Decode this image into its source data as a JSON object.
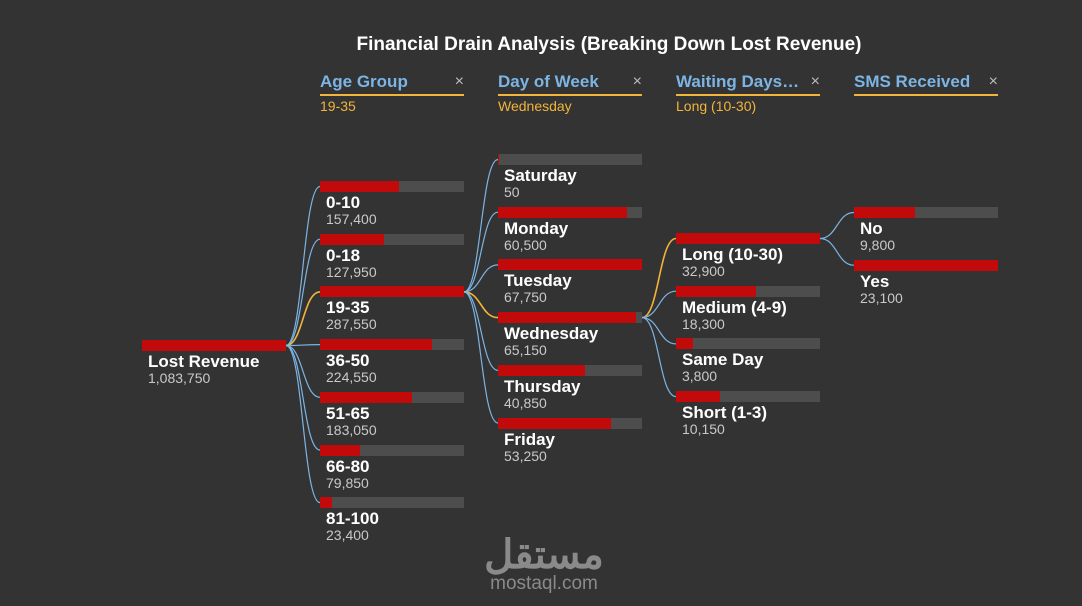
{
  "title": "Financial Drain Analysis (Breaking Down Lost Revenue)",
  "columns": [
    {
      "label": "Age Group",
      "selected": "19-35",
      "close_icon": "×"
    },
    {
      "label": "Day of Week",
      "selected": "Wednesday",
      "close_icon": "×"
    },
    {
      "label": "Waiting Days…",
      "selected": "Long (10-30)",
      "close_icon": "×"
    },
    {
      "label": "SMS Received",
      "selected": "",
      "close_icon": "×"
    }
  ],
  "colors": {
    "background": "#333333",
    "bar_fill": "#c20a0a",
    "bar_track": "#4d4d4d",
    "connector": "#7cb4e4",
    "selected_connector": "#f2b43a",
    "header_text": "#7cb4e4",
    "selection_accent": "#f2b43a"
  },
  "chart_data": {
    "type": "decomposition-tree",
    "title": "Financial Drain Analysis (Breaking Down Lost Revenue)",
    "root": {
      "label": "Lost Revenue",
      "value_text": "1,083,750",
      "value": 1083750
    },
    "levels": [
      {
        "name": "Age Group",
        "parent": "Lost Revenue",
        "selected_index": 2,
        "nodes": [
          {
            "label": "0-10",
            "value_text": "157,400",
            "value": 157400
          },
          {
            "label": "0-18",
            "value_text": "127,950",
            "value": 127950
          },
          {
            "label": "19-35",
            "value_text": "287,550",
            "value": 287550
          },
          {
            "label": "36-50",
            "value_text": "224,550",
            "value": 224550
          },
          {
            "label": "51-65",
            "value_text": "183,050",
            "value": 183050
          },
          {
            "label": "66-80",
            "value_text": "79,850",
            "value": 79850
          },
          {
            "label": "81-100",
            "value_text": "23,400",
            "value": 23400
          }
        ]
      },
      {
        "name": "Day of Week",
        "parent": "19-35",
        "selected_index": 3,
        "nodes": [
          {
            "label": "Saturday",
            "value_text": "50",
            "value": 50
          },
          {
            "label": "Monday",
            "value_text": "60,500",
            "value": 60500
          },
          {
            "label": "Tuesday",
            "value_text": "67,750",
            "value": 67750
          },
          {
            "label": "Wednesday",
            "value_text": "65,150",
            "value": 65150
          },
          {
            "label": "Thursday",
            "value_text": "40,850",
            "value": 40850
          },
          {
            "label": "Friday",
            "value_text": "53,250",
            "value": 53250
          }
        ]
      },
      {
        "name": "Waiting Days…",
        "parent": "Wednesday",
        "selected_index": 0,
        "nodes": [
          {
            "label": "Long (10-30)",
            "value_text": "32,900",
            "value": 32900
          },
          {
            "label": "Medium (4-9)",
            "value_text": "18,300",
            "value": 18300
          },
          {
            "label": "Same Day",
            "value_text": "3,800",
            "value": 3800
          },
          {
            "label": "Short (1-3)",
            "value_text": "10,150",
            "value": 10150
          }
        ]
      },
      {
        "name": "SMS Received",
        "parent": "Long (10-30)",
        "selected_index": -1,
        "nodes": [
          {
            "label": "No",
            "value_text": "9,800",
            "value": 9800
          },
          {
            "label": "Yes",
            "value_text": "23,100",
            "value": 23100
          }
        ]
      }
    ]
  },
  "watermark": {
    "logo_text": "مستقل",
    "site_text": "mostaql.com"
  }
}
